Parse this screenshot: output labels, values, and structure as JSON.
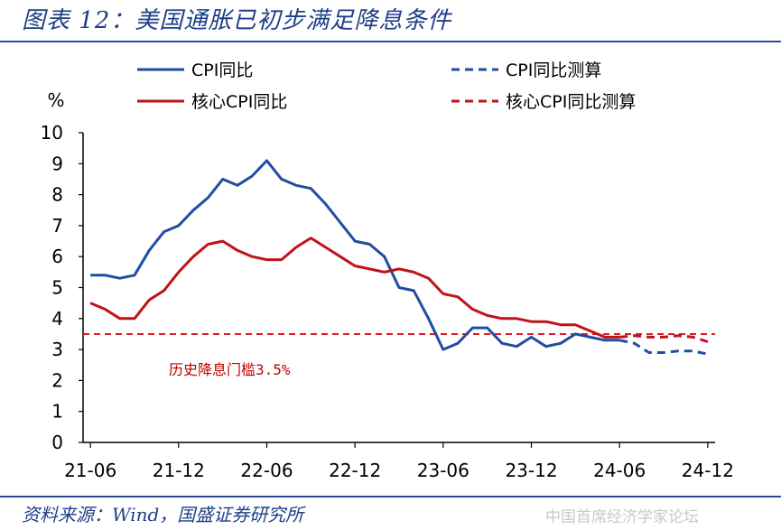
{
  "figure": {
    "title": "图表 12：美国通胀已初步满足降息条件",
    "source": "资料来源：Wind，国盛证券研究所",
    "watermark": "中国首席经济学家论坛"
  },
  "chart_data": {
    "type": "line",
    "title": "",
    "ylabel": "%",
    "xlabel": "",
    "ylim": [
      0,
      10
    ],
    "yticks": [
      "0",
      "1",
      "2",
      "3",
      "4",
      "5",
      "6",
      "7",
      "8",
      "9",
      "10"
    ],
    "xticks": [
      "21-06",
      "21-12",
      "22-06",
      "22-12",
      "23-06",
      "23-12",
      "24-06",
      "24-12"
    ],
    "x": [
      "21-06",
      "21-07",
      "21-08",
      "21-09",
      "21-10",
      "21-11",
      "21-12",
      "22-01",
      "22-02",
      "22-03",
      "22-04",
      "22-05",
      "22-06",
      "22-07",
      "22-08",
      "22-09",
      "22-10",
      "22-11",
      "22-12",
      "23-01",
      "23-02",
      "23-03",
      "23-04",
      "23-05",
      "23-06",
      "23-07",
      "23-08",
      "23-09",
      "23-10",
      "23-11",
      "23-12",
      "24-01",
      "24-02",
      "24-03",
      "24-04",
      "24-05",
      "24-06",
      "24-07",
      "24-08",
      "24-09",
      "24-10",
      "24-11",
      "24-12"
    ],
    "series": [
      {
        "name": "CPI同比",
        "color": "#1f4ea1",
        "style": "solid",
        "values": [
          5.4,
          5.4,
          5.3,
          5.4,
          6.2,
          6.8,
          7.0,
          7.5,
          7.9,
          8.5,
          8.3,
          8.6,
          9.1,
          8.5,
          8.3,
          8.2,
          7.7,
          7.1,
          6.5,
          6.4,
          6.0,
          5.0,
          4.9,
          4.0,
          3.0,
          3.2,
          3.7,
          3.7,
          3.2,
          3.1,
          3.4,
          3.1,
          3.2,
          3.5,
          3.4,
          3.3,
          3.3,
          null,
          null,
          null,
          null,
          null,
          null
        ]
      },
      {
        "name": "CPI同比测算",
        "color": "#1f4ea1",
        "style": "dashed",
        "values": [
          null,
          null,
          null,
          null,
          null,
          null,
          null,
          null,
          null,
          null,
          null,
          null,
          null,
          null,
          null,
          null,
          null,
          null,
          null,
          null,
          null,
          null,
          null,
          null,
          null,
          null,
          null,
          null,
          null,
          null,
          null,
          null,
          null,
          null,
          null,
          null,
          3.3,
          3.2,
          2.9,
          2.9,
          2.95,
          2.95,
          2.85
        ]
      },
      {
        "name": "核心CPI同比",
        "color": "#c0121a",
        "style": "solid",
        "values": [
          4.5,
          4.3,
          4.0,
          4.0,
          4.6,
          4.9,
          5.5,
          6.0,
          6.4,
          6.5,
          6.2,
          6.0,
          5.9,
          5.9,
          6.3,
          6.6,
          6.3,
          6.0,
          5.7,
          5.6,
          5.5,
          5.6,
          5.5,
          5.3,
          4.8,
          4.7,
          4.3,
          4.1,
          4.0,
          4.0,
          3.9,
          3.9,
          3.8,
          3.8,
          3.6,
          3.4,
          3.4,
          null,
          null,
          null,
          null,
          null,
          null
        ]
      },
      {
        "name": "核心CPI同比测算",
        "color": "#c0121a",
        "style": "dashed",
        "values": [
          null,
          null,
          null,
          null,
          null,
          null,
          null,
          null,
          null,
          null,
          null,
          null,
          null,
          null,
          null,
          null,
          null,
          null,
          null,
          null,
          null,
          null,
          null,
          null,
          null,
          null,
          null,
          null,
          null,
          null,
          null,
          null,
          null,
          null,
          null,
          null,
          3.4,
          3.45,
          3.4,
          3.4,
          3.45,
          3.4,
          3.25
        ]
      }
    ],
    "reference_line": {
      "value": 3.5,
      "label": "历史降息门槛3.5%",
      "color": "#e01b22",
      "style": "dashed"
    },
    "legend_position": "top"
  }
}
